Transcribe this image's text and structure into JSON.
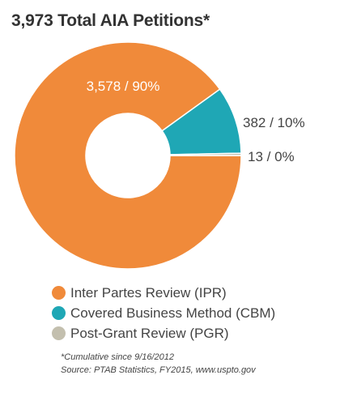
{
  "chart_data": {
    "type": "pie",
    "title": "3,973 Total AIA Petitions*",
    "categories": [
      "Inter Partes Review (IPR)",
      "Covered Business Method (CBM)",
      "Post-Grant Review (PGR)"
    ],
    "values": [
      3578,
      382,
      13
    ],
    "data_labels": [
      "3,578 / 90%",
      "382 / 10%",
      "13 / 0%"
    ],
    "colors": [
      "#f08a3a",
      "#1fa7b5",
      "#c3bfae"
    ],
    "legend_placement": "bottom",
    "footnotes": [
      "*Cumulative since 9/16/2012",
      "Source: PTAB Statistics, FY2015, www.uspto.gov"
    ]
  }
}
